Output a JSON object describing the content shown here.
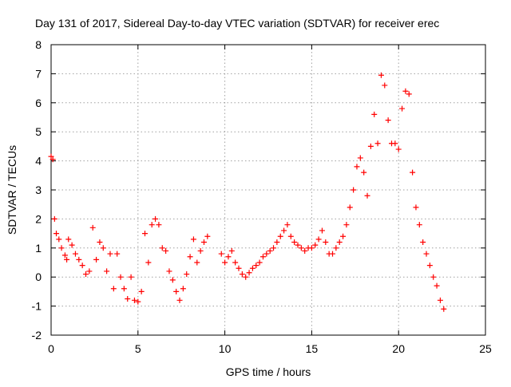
{
  "chart_data": {
    "type": "scatter",
    "title": "Day 131 of 2017, Sidereal Day-to-day VTEC variation (SDTVAR) for receiver erec",
    "xlabel": "GPS time / hours",
    "ylabel": "SDTVAR / TECUs",
    "xlim": [
      0,
      25
    ],
    "ylim": [
      -2,
      8
    ],
    "xticks": [
      "0",
      "5",
      "10",
      "15",
      "20",
      "25"
    ],
    "yticks": [
      "-2",
      "-1",
      "0",
      "1",
      "2",
      "3",
      "4",
      "5",
      "6",
      "7",
      "8"
    ],
    "grid": true,
    "marker": "+",
    "color": "#ff0000",
    "series": [
      {
        "name": "SDTVAR",
        "x": [
          0.0,
          0.1,
          0.2,
          0.3,
          0.45,
          0.6,
          0.8,
          0.9,
          1.0,
          1.2,
          1.4,
          1.6,
          1.8,
          2.0,
          2.2,
          2.4,
          2.6,
          2.8,
          3.0,
          3.2,
          3.4,
          3.6,
          3.8,
          4.0,
          4.2,
          4.4,
          4.6,
          4.8,
          5.0,
          5.2,
          5.4,
          5.6,
          5.8,
          6.0,
          6.2,
          6.4,
          6.6,
          6.8,
          7.0,
          7.2,
          7.4,
          7.6,
          7.8,
          8.0,
          8.2,
          8.4,
          8.6,
          8.8,
          9.0,
          9.8,
          10.0,
          10.2,
          10.4,
          10.6,
          10.8,
          11.0,
          11.2,
          11.4,
          11.6,
          11.8,
          12.0,
          12.2,
          12.4,
          12.6,
          12.8,
          13.0,
          13.2,
          13.4,
          13.6,
          13.8,
          14.0,
          14.2,
          14.4,
          14.6,
          14.8,
          15.0,
          15.2,
          15.4,
          15.6,
          15.8,
          16.0,
          16.2,
          16.4,
          16.6,
          16.8,
          17.0,
          17.2,
          17.4,
          17.6,
          17.8,
          18.0,
          18.2,
          18.4,
          18.6,
          18.8,
          19.0,
          19.2,
          19.4,
          19.6,
          19.8,
          20.0,
          20.2,
          20.4,
          20.6,
          20.8,
          21.0,
          21.2,
          21.4,
          21.6,
          21.8,
          22.0,
          22.2,
          22.4,
          22.6
        ],
        "y": [
          4.15,
          4.05,
          2.0,
          1.5,
          1.3,
          1.0,
          0.75,
          0.6,
          1.3,
          1.1,
          0.8,
          0.6,
          0.4,
          0.1,
          0.2,
          1.7,
          0.6,
          1.2,
          1.0,
          0.2,
          0.8,
          -0.4,
          0.8,
          0.0,
          -0.4,
          -0.75,
          0.0,
          -0.8,
          -0.85,
          -0.5,
          1.5,
          0.5,
          1.8,
          2.0,
          1.8,
          1.0,
          0.9,
          0.2,
          -0.1,
          -0.5,
          -0.8,
          -0.4,
          0.1,
          0.7,
          1.3,
          0.5,
          0.9,
          1.2,
          1.4,
          0.8,
          0.5,
          0.7,
          0.9,
          0.5,
          0.3,
          0.1,
          0.0,
          0.15,
          0.3,
          0.4,
          0.5,
          0.7,
          0.8,
          0.9,
          1.0,
          1.2,
          1.4,
          1.6,
          1.8,
          1.4,
          1.2,
          1.1,
          1.0,
          0.9,
          1.0,
          1.0,
          1.1,
          1.3,
          1.6,
          1.2,
          0.8,
          0.8,
          1.0,
          1.2,
          1.4,
          1.8,
          2.4,
          3.0,
          3.8,
          4.1,
          3.6,
          2.8,
          4.5,
          5.6,
          4.6,
          6.95,
          6.6,
          5.4,
          4.6,
          4.6,
          4.4,
          5.8,
          6.4,
          6.3,
          3.6,
          2.4,
          1.8,
          1.2,
          0.8,
          0.4,
          0.0,
          -0.3,
          -0.8,
          -1.1
        ]
      }
    ]
  }
}
